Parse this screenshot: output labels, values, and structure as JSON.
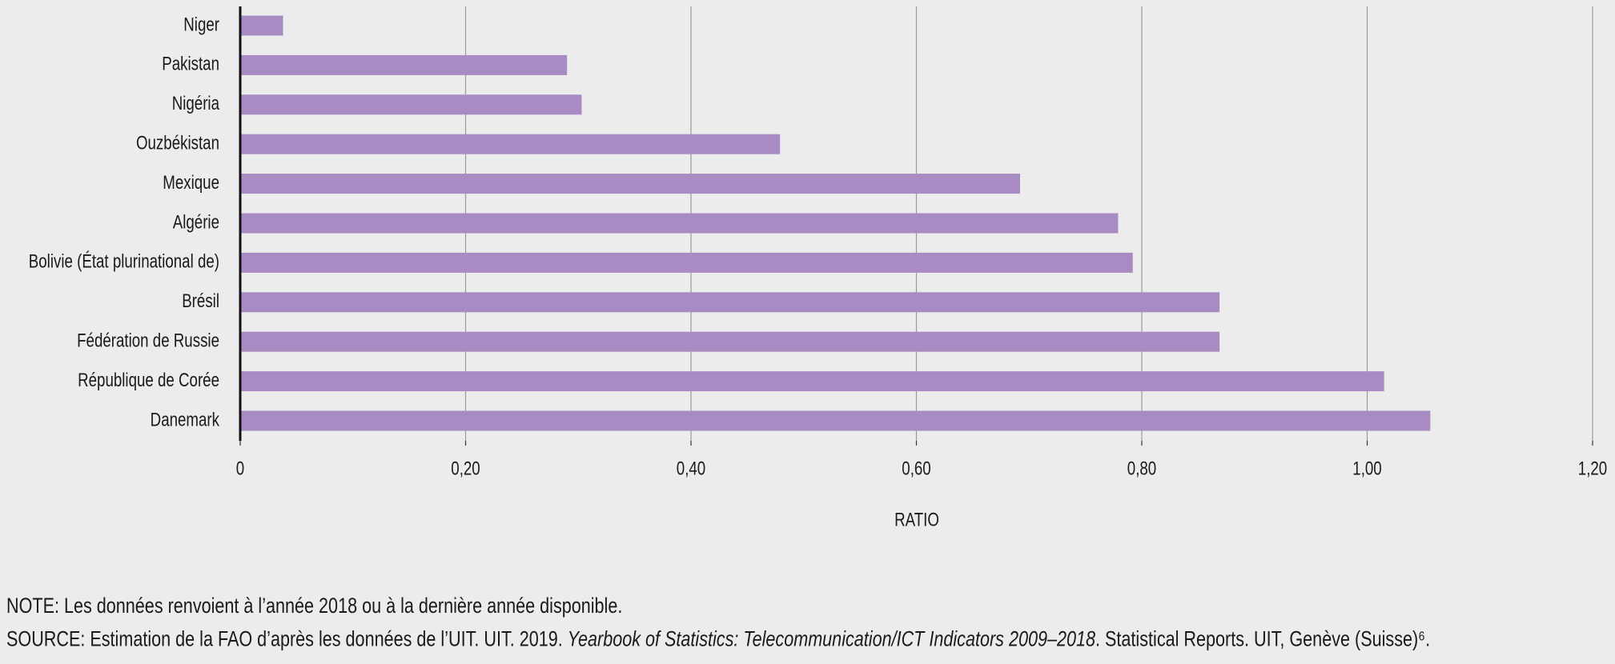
{
  "chart_data": {
    "type": "hbar",
    "categories": [
      "Niger",
      "Pakistan",
      "Nigéria",
      "Ouzbékistan",
      "Mexique",
      "Algérie",
      "Bolivie (État plurinational de)",
      "Brésil",
      "Fédération de Russie",
      "République de Corée",
      "Danemark"
    ],
    "values": [
      0.038,
      0.29,
      0.303,
      0.479,
      0.692,
      0.779,
      0.792,
      0.869,
      0.869,
      1.015,
      1.056
    ],
    "color": "#a98bc3",
    "xlim": [
      0,
      1.2
    ],
    "xticks": [
      0,
      {
        "value": 0.2,
        "label": "0,20"
      },
      {
        "value": 0.4,
        "label": "0,40"
      },
      {
        "value": 0.6,
        "label": "0,60"
      },
      {
        "value": 0.8,
        "label": "0,80"
      },
      {
        "value": 1.0,
        "label": "1,00"
      },
      {
        "value": 1.2,
        "label": "1,20"
      }
    ],
    "x_label": "RATIO",
    "grid": true,
    "note": "NOTE: Les données renvoient à l’année 2018 ou à la dernière année disponible.",
    "source": [
      "SOURCE: Estimation de la FAO d’après les données de l’UIT. UIT. 2019. ",
      "Yearbook of Statistics: Telecommunication/ICT Indicators 2009–2018",
      ". Statistical Reports. UIT, Genève (Suisse)⁶."
    ]
  }
}
